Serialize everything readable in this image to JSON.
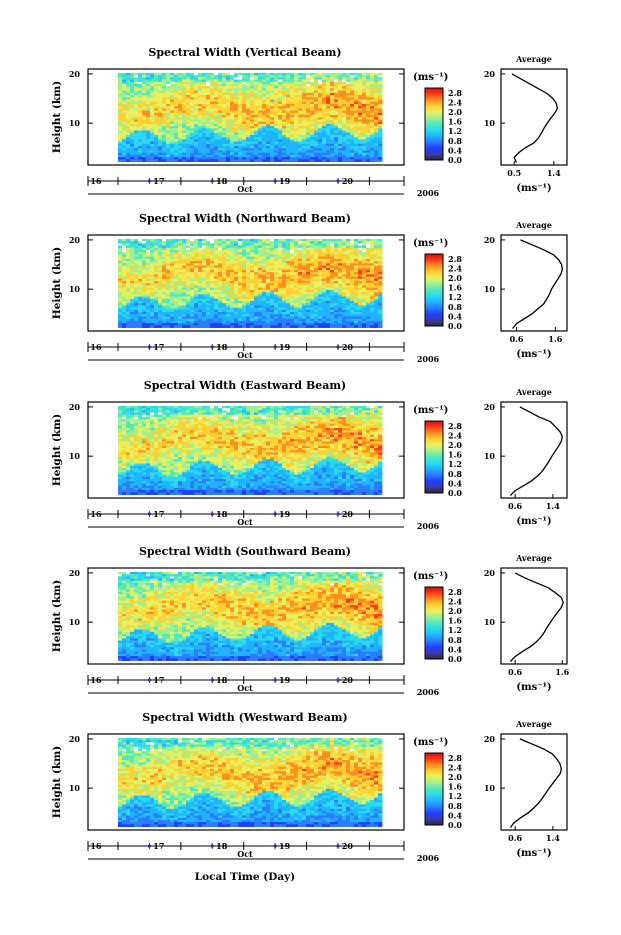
{
  "figure": {
    "xlabel": "Local Time (Day)",
    "ylabel": "Height (km)",
    "month": "Oct",
    "year": "2006",
    "x_tick_labels": [
      "16",
      "17",
      "18",
      "19",
      "20"
    ],
    "y_tick_labels": [
      "20",
      "10"
    ],
    "colorbar": {
      "unit_label": "(ms⁻¹)",
      "tick_labels": [
        "2.8",
        "2.4",
        "2.0",
        "1.6",
        "1.2",
        "0.8",
        "0.4",
        "0.0"
      ],
      "range": [
        0.0,
        3.0
      ],
      "colors": [
        "#2b2b2b",
        "#3a3ab0",
        "#2040ff",
        "#2c7cff",
        "#1fb4ff",
        "#2ad8f0",
        "#50e8c0",
        "#a0f090",
        "#e8f060",
        "#ffd030",
        "#ff9020",
        "#ff3a1a",
        "#d01010"
      ]
    },
    "avg_title": "Average",
    "avg_unit_label": "(ms⁻¹)"
  },
  "chart_data": [
    {
      "type": "heatmap",
      "title": "Spectral Width (Vertical Beam)",
      "x_range_days": [
        15.9,
        20.2
      ],
      "y_range_km": [
        1.5,
        21
      ],
      "profile": {
        "type": "line",
        "title": "Average",
        "xlim": [
          0.2,
          1.7
        ],
        "x_tick_labels": [
          "0.5",
          "1.4"
        ],
        "heights_km": [
          2,
          3,
          4,
          5,
          6,
          7,
          8,
          9,
          10,
          11,
          12,
          13,
          14,
          15,
          16,
          17,
          18,
          19,
          20
        ],
        "values": [
          0.55,
          0.5,
          0.6,
          0.75,
          0.95,
          1.05,
          1.12,
          1.18,
          1.25,
          1.33,
          1.42,
          1.48,
          1.46,
          1.38,
          1.25,
          1.05,
          0.85,
          0.65,
          0.45
        ]
      }
    },
    {
      "type": "heatmap",
      "title": "Spectral Width (Northward Beam)",
      "x_range_days": [
        15.9,
        20.2
      ],
      "y_range_km": [
        1.5,
        21
      ],
      "profile": {
        "type": "line",
        "title": "Average",
        "xlim": [
          0.2,
          1.9
        ],
        "x_tick_labels": [
          "0.6",
          "1.6"
        ],
        "heights_km": [
          2,
          3,
          4,
          5,
          6,
          7,
          8,
          9,
          10,
          11,
          12,
          13,
          14,
          15,
          16,
          17,
          18,
          19,
          20
        ],
        "values": [
          0.5,
          0.6,
          0.8,
          1.0,
          1.15,
          1.3,
          1.38,
          1.45,
          1.5,
          1.58,
          1.66,
          1.74,
          1.78,
          1.76,
          1.68,
          1.55,
          1.3,
          1.0,
          0.7
        ]
      }
    },
    {
      "type": "heatmap",
      "title": "Spectral Width (Eastward Beam)",
      "x_range_days": [
        15.9,
        20.2
      ],
      "y_range_km": [
        1.5,
        21
      ],
      "profile": {
        "type": "line",
        "title": "Average",
        "xlim": [
          0.3,
          1.7
        ],
        "x_tick_labels": [
          "0.6",
          "1.4"
        ],
        "heights_km": [
          2,
          3,
          4,
          5,
          6,
          7,
          8,
          9,
          10,
          11,
          12,
          13,
          14,
          15,
          16,
          17,
          18,
          19,
          20
        ],
        "values": [
          0.5,
          0.6,
          0.78,
          0.95,
          1.08,
          1.18,
          1.25,
          1.32,
          1.38,
          1.45,
          1.52,
          1.58,
          1.6,
          1.55,
          1.45,
          1.35,
          1.1,
          0.9,
          0.7
        ]
      }
    },
    {
      "type": "heatmap",
      "title": "Spectral Width (Southward Beam)",
      "x_range_days": [
        15.9,
        20.2
      ],
      "y_range_km": [
        1.5,
        21
      ],
      "profile": {
        "type": "line",
        "title": "Average",
        "xlim": [
          0.3,
          1.7
        ],
        "x_tick_labels": [
          "0.6",
          "1.6"
        ],
        "heights_km": [
          2,
          3,
          4,
          5,
          6,
          7,
          8,
          9,
          10,
          11,
          12,
          13,
          14,
          15,
          16,
          17,
          18,
          19,
          20
        ],
        "values": [
          0.5,
          0.6,
          0.75,
          0.92,
          1.05,
          1.15,
          1.22,
          1.28,
          1.35,
          1.42,
          1.5,
          1.58,
          1.62,
          1.58,
          1.45,
          1.3,
          1.05,
          0.8,
          0.6
        ]
      }
    },
    {
      "type": "heatmap",
      "title": "Spectral Width (Westward Beam)",
      "x_range_days": [
        15.9,
        20.2
      ],
      "y_range_km": [
        1.5,
        21
      ],
      "profile": {
        "type": "line",
        "title": "Average",
        "xlim": [
          0.3,
          1.7
        ],
        "x_tick_labels": [
          "0.6",
          "1.4"
        ],
        "heights_km": [
          2,
          3,
          4,
          5,
          6,
          7,
          8,
          9,
          10,
          11,
          12,
          13,
          14,
          15,
          16,
          17,
          18,
          19,
          20
        ],
        "values": [
          0.5,
          0.58,
          0.72,
          0.88,
          1.0,
          1.1,
          1.18,
          1.25,
          1.32,
          1.4,
          1.48,
          1.56,
          1.58,
          1.55,
          1.48,
          1.38,
          1.2,
          0.95,
          0.7
        ]
      }
    }
  ]
}
